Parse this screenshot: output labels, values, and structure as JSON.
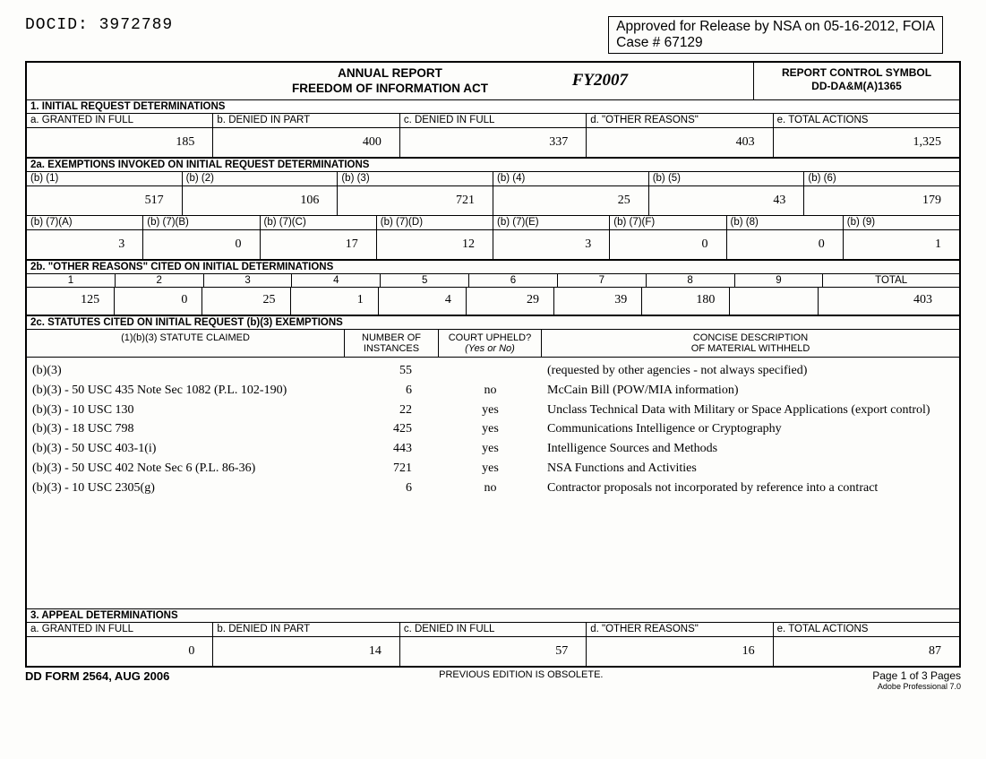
{
  "docid_label": "DOCID:",
  "docid_value": "3972789",
  "release_line1": "Approved for Release by NSA on 05-16-2012, FOIA",
  "release_line2": "Case # 67129",
  "title_line1": "ANNUAL REPORT",
  "title_line2": "FREEDOM OF INFORMATION ACT",
  "fy_hand": "FY2007",
  "rcs_label": "REPORT CONTROL SYMBOL",
  "rcs_value": "DD-DA&M(A)1365",
  "sec1_hdr": "1.  INITIAL REQUEST DETERMINATIONS",
  "sec1_cols": [
    "a.  GRANTED IN FULL",
    "b.  DENIED IN PART",
    "c.  DENIED IN FULL",
    "d.  \"OTHER REASONS\"",
    "e.  TOTAL ACTIONS"
  ],
  "sec1_vals": [
    "185",
    "400",
    "337",
    "403",
    "1,325"
  ],
  "sec2a_hdr": "2a. EXEMPTIONS INVOKED ON INITIAL REQUEST DETERMINATIONS",
  "sec2a_cols1": [
    "(b) (1)",
    "(b) (2)",
    "(b) (3)",
    "(b) (4)",
    "(b) (5)",
    "(b) (6)"
  ],
  "sec2a_vals1": [
    "517",
    "106",
    "721",
    "25",
    "43",
    "179"
  ],
  "sec2a_cols2": [
    "(b) (7)(A)",
    "(b) (7)(B)",
    "(b) (7)(C)",
    "(b) (7)(D)",
    "(b) (7)(E)",
    "(b) (7)(F)",
    "(b) (8)",
    "(b) (9)"
  ],
  "sec2a_vals2": [
    "3",
    "0",
    "17",
    "12",
    "3",
    "0",
    "0",
    "1"
  ],
  "sec2b_hdr": "2b. \"OTHER REASONS\" CITED ON INITIAL DETERMINATIONS",
  "sec2b_cols": [
    "1",
    "2",
    "3",
    "4",
    "5",
    "6",
    "7",
    "8",
    "9",
    "TOTAL"
  ],
  "sec2b_vals": [
    "125",
    "0",
    "25",
    "1",
    "4",
    "29",
    "39",
    "180",
    "",
    "403"
  ],
  "sec2c_hdr": "2c. STATUTES CITED ON INITIAL REQUEST (b)(3) EXEMPTIONS",
  "sec2c_h1": "(1)(b)(3) STATUTE CLAIMED",
  "sec2c_h2a": "NUMBER OF",
  "sec2c_h2b": "INSTANCES",
  "sec2c_h3a": "COURT UPHELD?",
  "sec2c_h3b": "(Yes or No)",
  "sec2c_h4a": "CONCISE DESCRIPTION",
  "sec2c_h4b": "OF MATERIAL WITHHELD",
  "statutes": [
    {
      "s": "(b)(3)",
      "n": "55",
      "u": "",
      "d": "(requested by other agencies - not always specified)"
    },
    {
      "s": "(b)(3) - 50 USC 435 Note Sec 1082 (P.L. 102-190)",
      "n": "6",
      "u": "no",
      "d": "McCain Bill (POW/MIA information)"
    },
    {
      "s": "(b)(3) - 10 USC 130",
      "n": "22",
      "u": "yes",
      "d": "Unclass Technical Data with Military or Space Applications (export control)"
    },
    {
      "s": "(b)(3) - 18 USC 798",
      "n": "425",
      "u": "yes",
      "d": "Communications Intelligence or Cryptography"
    },
    {
      "s": "(b)(3) - 50 USC 403-1(i)",
      "n": "443",
      "u": "yes",
      "d": "Intelligence Sources and Methods"
    },
    {
      "s": "(b)(3) - 50 USC 402 Note Sec 6 (P.L. 86-36)",
      "n": "721",
      "u": "yes",
      "d": "NSA Functions and Activities"
    },
    {
      "s": "(b)(3) - 10 USC 2305(g)",
      "n": "6",
      "u": "no",
      "d": "Contractor proposals not incorporated by reference into a contract"
    }
  ],
  "sec3_hdr": "3.  APPEAL DETERMINATIONS",
  "sec3_cols": [
    "a.  GRANTED IN FULL",
    "b.  DENIED IN PART",
    "c.  DENIED IN FULL",
    "d.  \"OTHER REASONS\"",
    "e.  TOTAL ACTIONS"
  ],
  "sec3_vals": [
    "0",
    "14",
    "57",
    "16",
    "87"
  ],
  "footer_form": "DD FORM 2564, AUG 2006",
  "footer_mid": "PREVIOUS EDITION IS OBSOLETE.",
  "footer_page": "Page 1 of 3 Pages",
  "footer_adobe": "Adobe Professional 7.0"
}
